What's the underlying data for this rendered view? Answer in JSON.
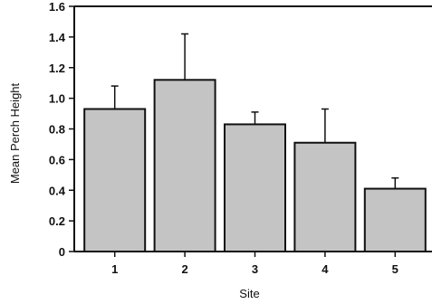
{
  "chart_data": {
    "type": "bar",
    "title": "",
    "xlabel": "Site",
    "ylabel": "Mean Perch Height",
    "categories": [
      "1",
      "2",
      "3",
      "4",
      "5"
    ],
    "series": [
      {
        "values": [
          0.93,
          1.12,
          0.83,
          0.71,
          0.41
        ],
        "error_upper": [
          1.08,
          1.42,
          0.91,
          0.93,
          0.48
        ]
      }
    ],
    "ylim": [
      0,
      1.6
    ],
    "yticks": [
      "0",
      "0.2",
      "0.4",
      "0.6",
      "0.8",
      "1.0",
      "1.2",
      "1.4",
      "1.6"
    ],
    "grid": false,
    "legend": "none",
    "colors": {
      "bar_fill": "#c4c4c4",
      "bar_stroke": "#111111",
      "axis": "#111111"
    }
  }
}
